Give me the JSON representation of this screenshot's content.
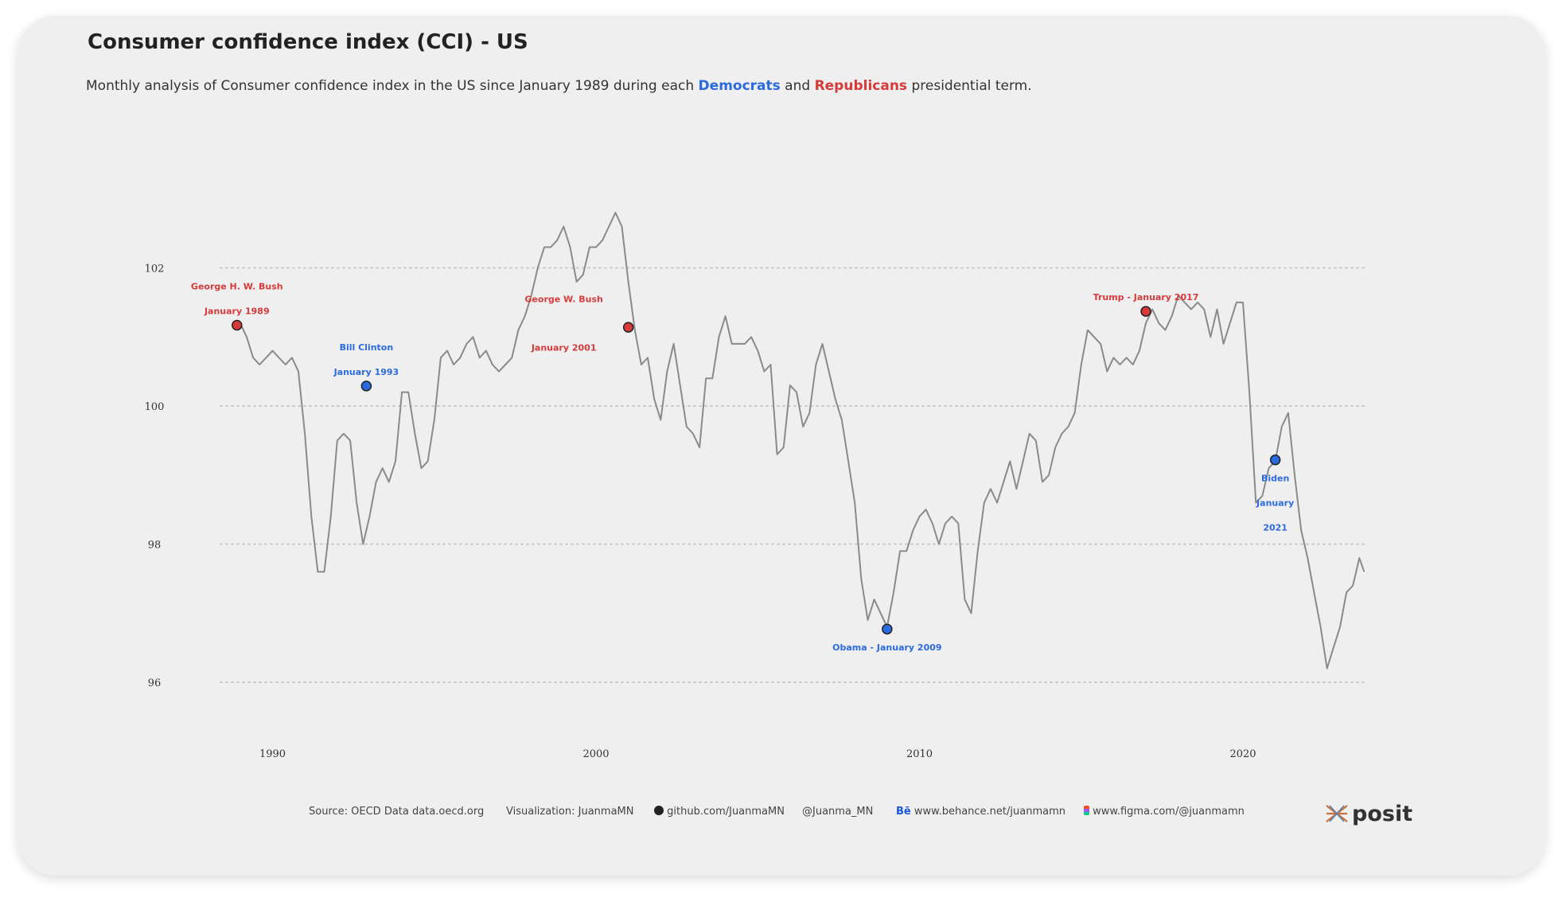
{
  "title": "Consumer confidence index (CCI) - US",
  "subtitle": {
    "part1": "Monthly analysis of Consumer confidence index in the US since January 1989 during each ",
    "democrats": "Democrats",
    "and": " and ",
    "republicans": "Republicans",
    "part2": " presidential term."
  },
  "colors": {
    "democrats": "#2b6ae0",
    "republicans": "#d63a3a",
    "line": "#8a8a8a",
    "grid": "#c8c8c8"
  },
  "chart_data": {
    "type": "line",
    "title": "Consumer confidence index (CCI) - US",
    "xlabel": "",
    "ylabel": "",
    "xlim": [
      1987.5,
      2023.8
    ],
    "ylim": [
      95.2,
      103.8
    ],
    "x_ticks": [
      1990,
      2000,
      2010,
      2020
    ],
    "y_ticks": [
      96,
      98,
      100,
      102
    ],
    "grid": "horizontal dotted",
    "series": [
      {
        "values": [
          [
            1989.0,
            101.2
          ],
          [
            1989.2,
            101.0
          ],
          [
            1989.4,
            100.7
          ],
          [
            1989.6,
            100.6
          ],
          [
            1989.8,
            100.7
          ],
          [
            1990.0,
            100.8
          ],
          [
            1990.2,
            100.7
          ],
          [
            1990.4,
            100.6
          ],
          [
            1990.6,
            100.7
          ],
          [
            1990.8,
            100.5
          ],
          [
            1991.0,
            99.6
          ],
          [
            1991.2,
            98.4
          ],
          [
            1991.4,
            97.6
          ],
          [
            1991.6,
            97.6
          ],
          [
            1991.8,
            98.4
          ],
          [
            1992.0,
            99.5
          ],
          [
            1992.2,
            99.6
          ],
          [
            1992.4,
            99.5
          ],
          [
            1992.6,
            98.6
          ],
          [
            1992.8,
            98.0
          ],
          [
            1993.0,
            98.4
          ],
          [
            1993.2,
            98.9
          ],
          [
            1993.4,
            99.1
          ],
          [
            1993.6,
            98.9
          ],
          [
            1993.8,
            99.2
          ],
          [
            1994.0,
            100.2
          ],
          [
            1994.2,
            100.2
          ],
          [
            1994.4,
            99.6
          ],
          [
            1994.6,
            99.1
          ],
          [
            1994.8,
            99.2
          ],
          [
            1995.0,
            99.8
          ],
          [
            1995.2,
            100.7
          ],
          [
            1995.4,
            100.8
          ],
          [
            1995.6,
            100.6
          ],
          [
            1995.8,
            100.7
          ],
          [
            1996.0,
            100.9
          ],
          [
            1996.2,
            101.0
          ],
          [
            1996.4,
            100.7
          ],
          [
            1996.6,
            100.8
          ],
          [
            1996.8,
            100.6
          ],
          [
            1997.0,
            100.5
          ],
          [
            1997.2,
            100.6
          ],
          [
            1997.4,
            100.7
          ],
          [
            1997.6,
            101.1
          ],
          [
            1997.8,
            101.3
          ],
          [
            1998.0,
            101.6
          ],
          [
            1998.2,
            102.0
          ],
          [
            1998.4,
            102.3
          ],
          [
            1998.6,
            102.3
          ],
          [
            1998.8,
            102.4
          ],
          [
            1999.0,
            102.6
          ],
          [
            1999.2,
            102.3
          ],
          [
            1999.4,
            101.8
          ],
          [
            1999.6,
            101.9
          ],
          [
            1999.8,
            102.3
          ],
          [
            2000.0,
            102.3
          ],
          [
            2000.2,
            102.4
          ],
          [
            2000.4,
            102.6
          ],
          [
            2000.6,
            102.8
          ],
          [
            2000.8,
            102.6
          ],
          [
            2001.0,
            101.8
          ],
          [
            2001.2,
            101.1
          ],
          [
            2001.4,
            100.6
          ],
          [
            2001.6,
            100.7
          ],
          [
            2001.8,
            100.1
          ],
          [
            2002.0,
            99.8
          ],
          [
            2002.2,
            100.5
          ],
          [
            2002.4,
            100.9
          ],
          [
            2002.6,
            100.3
          ],
          [
            2002.8,
            99.7
          ],
          [
            2003.0,
            99.6
          ],
          [
            2003.2,
            99.4
          ],
          [
            2003.4,
            100.4
          ],
          [
            2003.6,
            100.4
          ],
          [
            2003.8,
            101.0
          ],
          [
            2004.0,
            101.3
          ],
          [
            2004.2,
            100.9
          ],
          [
            2004.4,
            100.9
          ],
          [
            2004.6,
            100.9
          ],
          [
            2004.8,
            101.0
          ],
          [
            2005.0,
            100.8
          ],
          [
            2005.2,
            100.5
          ],
          [
            2005.4,
            100.6
          ],
          [
            2005.6,
            99.3
          ],
          [
            2005.8,
            99.4
          ],
          [
            2006.0,
            100.3
          ],
          [
            2006.2,
            100.2
          ],
          [
            2006.4,
            99.7
          ],
          [
            2006.6,
            99.9
          ],
          [
            2006.8,
            100.6
          ],
          [
            2007.0,
            100.9
          ],
          [
            2007.2,
            100.5
          ],
          [
            2007.4,
            100.1
          ],
          [
            2007.6,
            99.8
          ],
          [
            2007.8,
            99.2
          ],
          [
            2008.0,
            98.6
          ],
          [
            2008.2,
            97.5
          ],
          [
            2008.4,
            96.9
          ],
          [
            2008.6,
            97.2
          ],
          [
            2008.8,
            97.0
          ],
          [
            2009.0,
            96.8
          ],
          [
            2009.2,
            97.3
          ],
          [
            2009.4,
            97.9
          ],
          [
            2009.6,
            97.9
          ],
          [
            2009.8,
            98.2
          ],
          [
            2010.0,
            98.4
          ],
          [
            2010.2,
            98.5
          ],
          [
            2010.4,
            98.3
          ],
          [
            2010.6,
            98.0
          ],
          [
            2010.8,
            98.3
          ],
          [
            2011.0,
            98.4
          ],
          [
            2011.2,
            98.3
          ],
          [
            2011.4,
            97.2
          ],
          [
            2011.6,
            97.0
          ],
          [
            2011.8,
            97.9
          ],
          [
            2012.0,
            98.6
          ],
          [
            2012.2,
            98.8
          ],
          [
            2012.4,
            98.6
          ],
          [
            2012.6,
            98.9
          ],
          [
            2012.8,
            99.2
          ],
          [
            2013.0,
            98.8
          ],
          [
            2013.2,
            99.2
          ],
          [
            2013.4,
            99.6
          ],
          [
            2013.6,
            99.5
          ],
          [
            2013.8,
            98.9
          ],
          [
            2014.0,
            99.0
          ],
          [
            2014.2,
            99.4
          ],
          [
            2014.4,
            99.6
          ],
          [
            2014.6,
            99.7
          ],
          [
            2014.8,
            99.9
          ],
          [
            2015.0,
            100.6
          ],
          [
            2015.2,
            101.1
          ],
          [
            2015.4,
            101.0
          ],
          [
            2015.6,
            100.9
          ],
          [
            2015.8,
            100.5
          ],
          [
            2016.0,
            100.7
          ],
          [
            2016.2,
            100.6
          ],
          [
            2016.4,
            100.7
          ],
          [
            2016.6,
            100.6
          ],
          [
            2016.8,
            100.8
          ],
          [
            2017.0,
            101.2
          ],
          [
            2017.2,
            101.4
          ],
          [
            2017.4,
            101.2
          ],
          [
            2017.6,
            101.1
          ],
          [
            2017.8,
            101.3
          ],
          [
            2018.0,
            101.6
          ],
          [
            2018.2,
            101.5
          ],
          [
            2018.4,
            101.4
          ],
          [
            2018.6,
            101.5
          ],
          [
            2018.8,
            101.4
          ],
          [
            2019.0,
            101.0
          ],
          [
            2019.2,
            101.4
          ],
          [
            2019.4,
            100.9
          ],
          [
            2019.6,
            101.2
          ],
          [
            2019.8,
            101.5
          ],
          [
            2020.0,
            101.5
          ],
          [
            2020.2,
            100.2
          ],
          [
            2020.4,
            98.6
          ],
          [
            2020.6,
            98.7
          ],
          [
            2020.8,
            99.1
          ],
          [
            2021.0,
            99.2
          ],
          [
            2021.2,
            99.7
          ],
          [
            2021.4,
            99.9
          ],
          [
            2021.6,
            99.0
          ],
          [
            2021.8,
            98.2
          ],
          [
            2022.0,
            97.8
          ],
          [
            2022.2,
            97.3
          ],
          [
            2022.4,
            96.8
          ],
          [
            2022.6,
            96.2
          ],
          [
            2022.8,
            96.5
          ],
          [
            2023.0,
            96.8
          ],
          [
            2023.2,
            97.3
          ],
          [
            2023.4,
            97.4
          ],
          [
            2023.6,
            97.8
          ],
          [
            2023.75,
            97.6
          ]
        ]
      }
    ],
    "annotations": [
      {
        "party": "republicans",
        "x": 1988.9,
        "y": 101.17,
        "lines": [
          "George H. W. Bush",
          "January 1989"
        ],
        "pos": "above"
      },
      {
        "party": "democrats",
        "x": 1992.9,
        "y": 100.29,
        "lines": [
          "Bill Clinton",
          "January 1993"
        ],
        "pos": "above"
      },
      {
        "party": "republicans",
        "x": 2001.0,
        "y": 101.14,
        "lines": [
          "George W. Bush",
          "January 2001"
        ],
        "pos": "left"
      },
      {
        "party": "democrats",
        "x": 2009.0,
        "y": 96.77,
        "lines": [
          "Obama - January 2009"
        ],
        "pos": "below"
      },
      {
        "party": "republicans",
        "x": 2017.0,
        "y": 101.37,
        "lines": [
          "Trump - January 2017"
        ],
        "pos": "above"
      },
      {
        "party": "democrats",
        "x": 2021.0,
        "y": 99.22,
        "lines": [
          "Biden",
          "January",
          "2021"
        ],
        "pos": "below"
      }
    ]
  },
  "footer": {
    "source": "Source: OECD Data  data.oecd.org",
    "visualization": "Visualization: JuanmaMN",
    "github": "github.com/JuanmaMN",
    "twitter": "@Juanma_MN",
    "behance": "www.behance.net/juanmamn",
    "figma": "www.figma.com/@juanmamn",
    "brand": "posit"
  }
}
